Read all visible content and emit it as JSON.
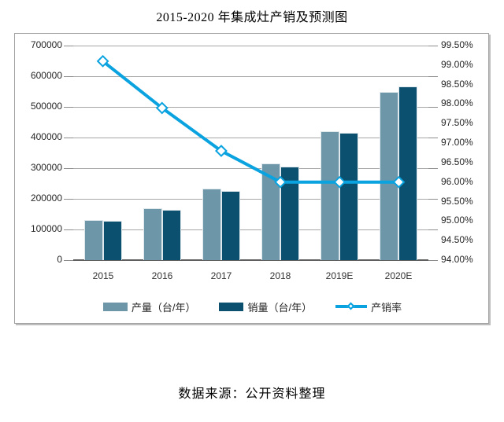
{
  "title": "2015-2020 年集成灶产销及预测图",
  "source_note": "数据来源：公开资料整理",
  "colors": {
    "production_bar": "#6d96a9",
    "sales_bar": "#0b506e",
    "rate_line": "#0aa3e0",
    "gridline": "#a6a6a6",
    "axis_line": "#5f5f5f",
    "frame_border": "#a3a3a3",
    "text": "#262626"
  },
  "chart_data": {
    "type": "bar+line combo",
    "title": "2015-2020 年集成灶产销及预测图",
    "categories": [
      "2015",
      "2016",
      "2017",
      "2018",
      "2019E",
      "2020E"
    ],
    "series": [
      {
        "name": "产量（台/年）",
        "type": "bar",
        "axis": "left",
        "color": "#6d96a9",
        "values": [
          130000,
          168000,
          234000,
          316000,
          421000,
          549000
        ]
      },
      {
        "name": "销量（台/年）",
        "type": "bar",
        "axis": "left",
        "color": "#0b506e",
        "values": [
          129000,
          163000,
          226000,
          306000,
          416000,
          566000
        ]
      },
      {
        "name": "产销率",
        "type": "line",
        "axis": "right",
        "color": "#0aa3e0",
        "marker": "diamond",
        "values_percent": [
          99.1,
          97.9,
          96.8,
          96.0,
          96.0,
          96.0
        ]
      }
    ],
    "left_axis": {
      "min": 0,
      "max": 700000,
      "step": 100000,
      "tick_labels": [
        "700000",
        "600000",
        "500000",
        "400000",
        "300000",
        "200000",
        "100000",
        "0"
      ]
    },
    "right_axis": {
      "min": 94.0,
      "max": 99.5,
      "step": 0.5,
      "tick_labels": [
        "99.50%",
        "99.00%",
        "98.50%",
        "98.00%",
        "97.50%",
        "97.00%",
        "96.50%",
        "96.00%",
        "95.50%",
        "95.00%",
        "94.50%",
        "94.00%"
      ]
    },
    "grid": true,
    "legend_position": "bottom"
  }
}
